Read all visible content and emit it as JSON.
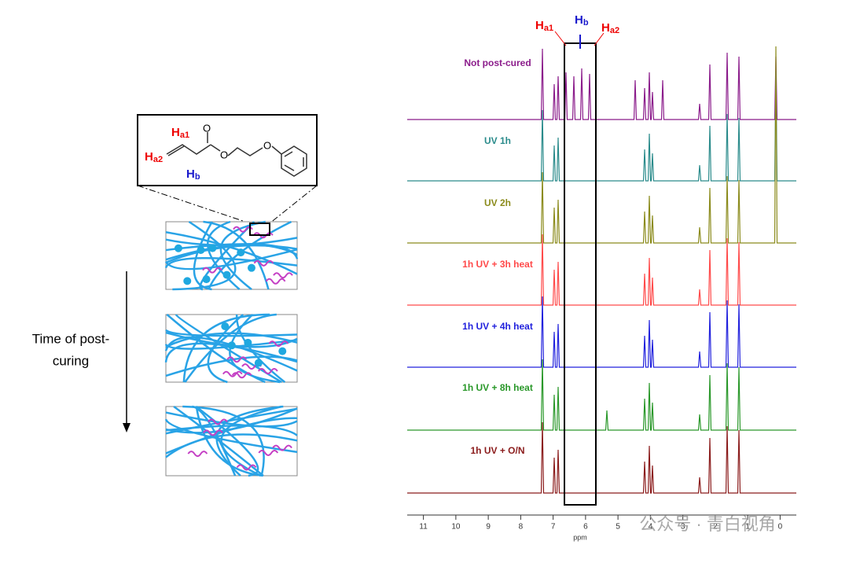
{
  "schematic": {
    "h_a1": "H",
    "h_a1_sub": "a1",
    "h_a2": "H",
    "h_a2_sub": "a2",
    "h_b": "H",
    "h_b_sub": "b",
    "oxygen_1": "O",
    "oxygen_2": "O",
    "oxygen_3": "O",
    "time_label": [
      "Time of post-",
      "curing"
    ]
  },
  "spectra": {
    "h_a1": "H",
    "h_a1_sub": "a1",
    "h_b": "H",
    "h_b_sub": "b",
    "h_a2": "H",
    "h_a2_sub": "a2",
    "traces": [
      {
        "name": "Not post-cured",
        "color": "#8b1c8b"
      },
      {
        "name": "UV 1h",
        "color": "#2a8b8b"
      },
      {
        "name": "UV 2h",
        "color": "#8b8b1c"
      },
      {
        "name": "1h UV + 3h heat",
        "color": "#ff4a4a"
      },
      {
        "name": "1h UV + 4h heat",
        "color": "#2222dd"
      },
      {
        "name": "1h UV + 8h heat",
        "color": "#2a982a"
      },
      {
        "name": "1h UV + O/N",
        "color": "#8b1c1c"
      }
    ],
    "x_axis": {
      "label": "ppm",
      "xlim": [
        11.5,
        -0.5
      ],
      "ticks": [
        11,
        10,
        9,
        8,
        7,
        6,
        5,
        4,
        3,
        2,
        1,
        0
      ]
    }
  },
  "watermark": "公众号 · 青白视角"
}
